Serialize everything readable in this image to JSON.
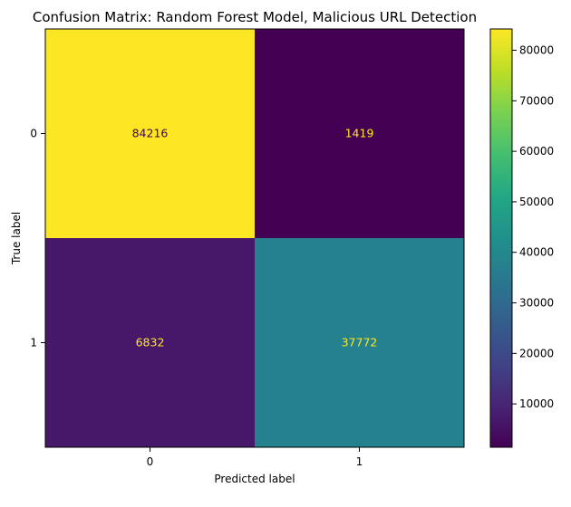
{
  "chart_data": {
    "type": "heatmap",
    "title": "Confusion Matrix: Random Forest Model, Malicious URL Detection",
    "xlabel": "Predicted label",
    "ylabel": "True label",
    "x_categories": [
      "0",
      "1"
    ],
    "y_categories": [
      "0",
      "1"
    ],
    "values": [
      [
        84216,
        1419
      ],
      [
        6832,
        37772
      ]
    ],
    "colormap": "viridis",
    "colorbar": {
      "min": 1419,
      "max": 84216,
      "ticks": [
        10000,
        20000,
        30000,
        40000,
        50000,
        60000,
        70000,
        80000
      ],
      "tick_labels": [
        "10000",
        "20000",
        "30000",
        "40000",
        "50000",
        "60000",
        "70000",
        "80000"
      ]
    },
    "text_color_dark": "#440154",
    "text_color_light": "#fde725",
    "grid": false
  }
}
